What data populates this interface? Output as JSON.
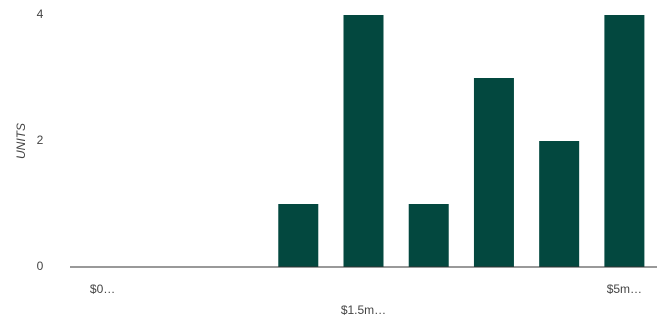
{
  "chart_data": {
    "type": "bar",
    "y_label": "UNITS",
    "categories": [
      "$0…",
      null,
      null,
      null,
      "$1.5m…",
      null,
      null,
      null,
      "$5m…"
    ],
    "values": [
      0,
      0,
      0,
      1,
      4,
      1,
      3,
      2,
      4
    ],
    "color": "#03483f",
    "ylim": [
      0,
      4
    ],
    "yticks": [
      0,
      2,
      4
    ],
    "grid": false
  }
}
